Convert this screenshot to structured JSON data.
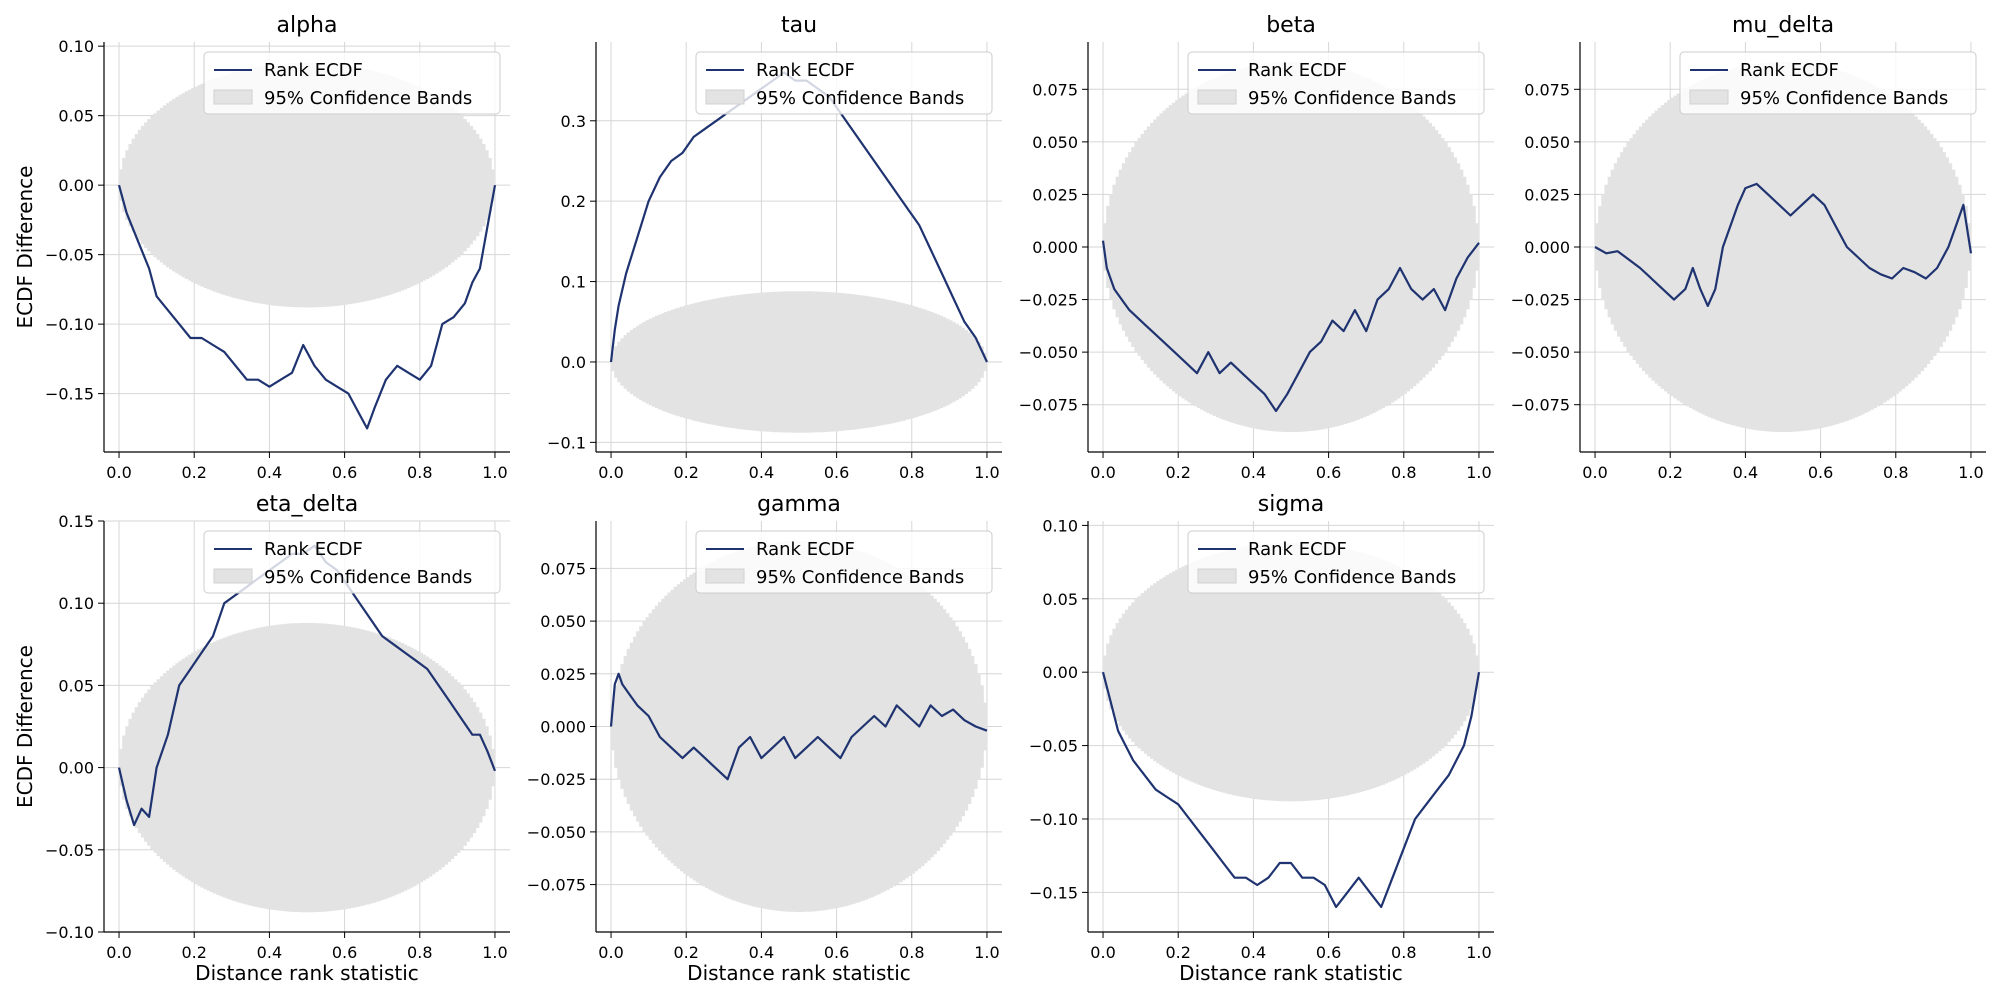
{
  "chart_data": [
    {
      "type": "line",
      "title": "alpha",
      "xlabel": "",
      "ylabel": "ECDF Difference",
      "xlim": [
        -0.04,
        1.04
      ],
      "ylim": [
        -0.192,
        0.103
      ],
      "xticks": [
        0.0,
        0.2,
        0.4,
        0.6,
        0.8,
        1.0
      ],
      "xtick_labels": [
        "0.0",
        "0.2",
        "0.4",
        "0.6",
        "0.8",
        "1.0"
      ],
      "yticks": [
        0.1,
        0.05,
        0.0,
        -0.05,
        -0.1,
        -0.15
      ],
      "ytick_labels": [
        "0.10",
        "0.05",
        "0.00",
        "−0.05",
        "−0.10",
        "−0.15"
      ],
      "grid": true,
      "legend": [
        "Rank ECDF",
        "95% Confidence Bands"
      ],
      "legend_position": "top-right",
      "band": {
        "center": 0.0,
        "half_width": 0.088
      },
      "series": [
        {
          "x": [
            0.0,
            0.02,
            0.05,
            0.08,
            0.1,
            0.13,
            0.16,
            0.19,
            0.22,
            0.25,
            0.28,
            0.31,
            0.34,
            0.37,
            0.4,
            0.43,
            0.46,
            0.49,
            0.52,
            0.55,
            0.58,
            0.61,
            0.64,
            0.66,
            0.68,
            0.71,
            0.74,
            0.77,
            0.8,
            0.83,
            0.86,
            0.89,
            0.92,
            0.94,
            0.96,
            0.98,
            1.0
          ],
          "y": [
            0.0,
            -0.02,
            -0.04,
            -0.06,
            -0.08,
            -0.09,
            -0.1,
            -0.11,
            -0.11,
            -0.115,
            -0.12,
            -0.13,
            -0.14,
            -0.14,
            -0.145,
            -0.14,
            -0.135,
            -0.115,
            -0.13,
            -0.14,
            -0.145,
            -0.15,
            -0.165,
            -0.175,
            -0.16,
            -0.14,
            -0.13,
            -0.135,
            -0.14,
            -0.13,
            -0.1,
            -0.095,
            -0.085,
            -0.07,
            -0.06,
            -0.03,
            0.0
          ]
        }
      ]
    },
    {
      "type": "line",
      "title": "tau",
      "xlabel": "",
      "ylabel": "",
      "xlim": [
        -0.04,
        1.04
      ],
      "ylim": [
        -0.112,
        0.398
      ],
      "xticks": [
        0.0,
        0.2,
        0.4,
        0.6,
        0.8,
        1.0
      ],
      "xtick_labels": [
        "0.0",
        "0.2",
        "0.4",
        "0.6",
        "0.8",
        "1.0"
      ],
      "yticks": [
        0.3,
        0.2,
        0.1,
        0.0,
        -0.1
      ],
      "ytick_labels": [
        "0.3",
        "0.2",
        "0.1",
        "0.0",
        "−0.1"
      ],
      "grid": true,
      "legend": [
        "Rank ECDF",
        "95% Confidence Bands"
      ],
      "legend_position": "top-right",
      "band": {
        "center": 0.0,
        "half_width": 0.088
      },
      "series": [
        {
          "x": [
            0.0,
            0.01,
            0.02,
            0.04,
            0.06,
            0.08,
            0.1,
            0.13,
            0.16,
            0.19,
            0.22,
            0.25,
            0.28,
            0.31,
            0.34,
            0.37,
            0.4,
            0.43,
            0.46,
            0.49,
            0.52,
            0.55,
            0.58,
            0.61,
            0.64,
            0.67,
            0.7,
            0.73,
            0.76,
            0.79,
            0.82,
            0.85,
            0.88,
            0.91,
            0.94,
            0.97,
            1.0
          ],
          "y": [
            0.0,
            0.04,
            0.07,
            0.11,
            0.14,
            0.17,
            0.2,
            0.23,
            0.25,
            0.26,
            0.28,
            0.29,
            0.3,
            0.31,
            0.32,
            0.33,
            0.34,
            0.35,
            0.36,
            0.35,
            0.35,
            0.34,
            0.33,
            0.31,
            0.29,
            0.27,
            0.25,
            0.23,
            0.21,
            0.19,
            0.17,
            0.14,
            0.11,
            0.08,
            0.05,
            0.03,
            0.0
          ]
        }
      ]
    },
    {
      "type": "line",
      "title": "beta",
      "xlabel": "",
      "ylabel": "",
      "xlim": [
        -0.04,
        1.04
      ],
      "ylim": [
        -0.0975,
        0.0975
      ],
      "xticks": [
        0.0,
        0.2,
        0.4,
        0.6,
        0.8,
        1.0
      ],
      "xtick_labels": [
        "0.0",
        "0.2",
        "0.4",
        "0.6",
        "0.8",
        "1.0"
      ],
      "yticks": [
        0.075,
        0.05,
        0.025,
        0.0,
        -0.025,
        -0.05,
        -0.075
      ],
      "ytick_labels": [
        "0.075",
        "0.050",
        "0.025",
        "0.000",
        "−0.025",
        "−0.050",
        "−0.075"
      ],
      "grid": true,
      "legend": [
        "Rank ECDF",
        "95% Confidence Bands"
      ],
      "legend_position": "top-right",
      "band": {
        "center": 0.0,
        "half_width": 0.088
      },
      "series": [
        {
          "x": [
            0.0,
            0.01,
            0.03,
            0.05,
            0.07,
            0.1,
            0.13,
            0.16,
            0.19,
            0.22,
            0.25,
            0.28,
            0.31,
            0.34,
            0.37,
            0.4,
            0.43,
            0.46,
            0.49,
            0.52,
            0.55,
            0.58,
            0.61,
            0.64,
            0.67,
            0.7,
            0.73,
            0.76,
            0.79,
            0.82,
            0.85,
            0.88,
            0.91,
            0.94,
            0.97,
            1.0
          ],
          "y": [
            0.003,
            -0.01,
            -0.02,
            -0.025,
            -0.03,
            -0.035,
            -0.04,
            -0.045,
            -0.05,
            -0.055,
            -0.06,
            -0.05,
            -0.06,
            -0.055,
            -0.06,
            -0.065,
            -0.07,
            -0.078,
            -0.07,
            -0.06,
            -0.05,
            -0.045,
            -0.035,
            -0.04,
            -0.03,
            -0.04,
            -0.025,
            -0.02,
            -0.01,
            -0.02,
            -0.025,
            -0.02,
            -0.03,
            -0.015,
            -0.005,
            0.002
          ]
        }
      ]
    },
    {
      "type": "line",
      "title": "mu_delta",
      "xlabel": "",
      "ylabel": "",
      "xlim": [
        -0.04,
        1.04
      ],
      "ylim": [
        -0.0975,
        0.0975
      ],
      "xticks": [
        0.0,
        0.2,
        0.4,
        0.6,
        0.8,
        1.0
      ],
      "xtick_labels": [
        "0.0",
        "0.2",
        "0.4",
        "0.6",
        "0.8",
        "1.0"
      ],
      "yticks": [
        0.075,
        0.05,
        0.025,
        0.0,
        -0.025,
        -0.05,
        -0.075
      ],
      "ytick_labels": [
        "0.075",
        "0.050",
        "0.025",
        "0.000",
        "−0.025",
        "−0.050",
        "−0.075"
      ],
      "grid": true,
      "legend": [
        "Rank ECDF",
        "95% Confidence Bands"
      ],
      "legend_position": "top-right",
      "band": {
        "center": 0.0,
        "half_width": 0.088
      },
      "series": [
        {
          "x": [
            0.0,
            0.03,
            0.06,
            0.09,
            0.12,
            0.15,
            0.18,
            0.21,
            0.24,
            0.26,
            0.28,
            0.3,
            0.32,
            0.34,
            0.36,
            0.38,
            0.4,
            0.43,
            0.46,
            0.49,
            0.52,
            0.55,
            0.58,
            0.61,
            0.64,
            0.67,
            0.7,
            0.73,
            0.76,
            0.79,
            0.82,
            0.85,
            0.88,
            0.91,
            0.94,
            0.96,
            0.98,
            1.0
          ],
          "y": [
            0.0,
            -0.003,
            -0.002,
            -0.006,
            -0.01,
            -0.015,
            -0.02,
            -0.025,
            -0.02,
            -0.01,
            -0.02,
            -0.028,
            -0.02,
            0.0,
            0.01,
            0.02,
            0.028,
            0.03,
            0.025,
            0.02,
            0.015,
            0.02,
            0.025,
            0.02,
            0.01,
            0.0,
            -0.005,
            -0.01,
            -0.013,
            -0.015,
            -0.01,
            -0.012,
            -0.015,
            -0.01,
            0.0,
            0.01,
            0.02,
            -0.003
          ]
        }
      ]
    },
    {
      "type": "line",
      "title": "eta_delta",
      "xlabel": "Distance rank statistic",
      "ylabel": "ECDF Difference",
      "xlim": [
        -0.04,
        1.04
      ],
      "ylim": [
        -0.1,
        0.15
      ],
      "xticks": [
        0.0,
        0.2,
        0.4,
        0.6,
        0.8,
        1.0
      ],
      "xtick_labels": [
        "0.0",
        "0.2",
        "0.4",
        "0.6",
        "0.8",
        "1.0"
      ],
      "yticks": [
        0.15,
        0.1,
        0.05,
        0.0,
        -0.05,
        -0.1
      ],
      "ytick_labels": [
        "0.15",
        "0.10",
        "0.05",
        "0.00",
        "−0.05",
        "−0.10"
      ],
      "grid": true,
      "legend": [
        "Rank ECDF",
        "95% Confidence Bands"
      ],
      "legend_position": "top-right",
      "band": {
        "center": 0.0,
        "half_width": 0.088
      },
      "series": [
        {
          "x": [
            0.0,
            0.02,
            0.04,
            0.06,
            0.08,
            0.1,
            0.13,
            0.16,
            0.19,
            0.22,
            0.25,
            0.28,
            0.31,
            0.34,
            0.37,
            0.4,
            0.43,
            0.46,
            0.49,
            0.52,
            0.55,
            0.58,
            0.61,
            0.64,
            0.67,
            0.7,
            0.73,
            0.76,
            0.79,
            0.82,
            0.85,
            0.88,
            0.91,
            0.94,
            0.96,
            0.98,
            1.0
          ],
          "y": [
            0.0,
            -0.02,
            -0.035,
            -0.025,
            -0.03,
            0.0,
            0.02,
            0.05,
            0.06,
            0.07,
            0.08,
            0.1,
            0.105,
            0.11,
            0.115,
            0.12,
            0.125,
            0.13,
            0.13,
            0.135,
            0.125,
            0.12,
            0.11,
            0.1,
            0.09,
            0.08,
            0.075,
            0.07,
            0.065,
            0.06,
            0.05,
            0.04,
            0.03,
            0.02,
            0.02,
            0.01,
            -0.002
          ]
        }
      ]
    },
    {
      "type": "line",
      "title": "gamma",
      "xlabel": "Distance rank statistic",
      "ylabel": "",
      "xlim": [
        -0.04,
        1.04
      ],
      "ylim": [
        -0.0975,
        0.0975
      ],
      "xticks": [
        0.0,
        0.2,
        0.4,
        0.6,
        0.8,
        1.0
      ],
      "xtick_labels": [
        "0.0",
        "0.2",
        "0.4",
        "0.6",
        "0.8",
        "1.0"
      ],
      "yticks": [
        0.075,
        0.05,
        0.025,
        0.0,
        -0.025,
        -0.05,
        -0.075
      ],
      "ytick_labels": [
        "0.075",
        "0.050",
        "0.025",
        "0.000",
        "−0.025",
        "−0.050",
        "−0.075"
      ],
      "grid": true,
      "legend": [
        "Rank ECDF",
        "95% Confidence Bands"
      ],
      "legend_position": "top-right",
      "band": {
        "center": 0.0,
        "half_width": 0.088
      },
      "series": [
        {
          "x": [
            0.0,
            0.01,
            0.02,
            0.03,
            0.05,
            0.07,
            0.1,
            0.13,
            0.16,
            0.19,
            0.22,
            0.25,
            0.28,
            0.31,
            0.34,
            0.37,
            0.4,
            0.43,
            0.46,
            0.49,
            0.52,
            0.55,
            0.58,
            0.61,
            0.64,
            0.67,
            0.7,
            0.73,
            0.76,
            0.79,
            0.82,
            0.85,
            0.88,
            0.91,
            0.94,
            0.97,
            1.0
          ],
          "y": [
            0.0,
            0.02,
            0.025,
            0.02,
            0.015,
            0.01,
            0.005,
            -0.005,
            -0.01,
            -0.015,
            -0.01,
            -0.015,
            -0.02,
            -0.025,
            -0.01,
            -0.005,
            -0.015,
            -0.01,
            -0.005,
            -0.015,
            -0.01,
            -0.005,
            -0.01,
            -0.015,
            -0.005,
            0.0,
            0.005,
            0.0,
            0.01,
            0.005,
            0.0,
            0.01,
            0.005,
            0.008,
            0.003,
            0.0,
            -0.002
          ]
        }
      ]
    },
    {
      "type": "line",
      "title": "sigma",
      "xlabel": "Distance rank statistic",
      "ylabel": "",
      "xlim": [
        -0.04,
        1.04
      ],
      "ylim": [
        -0.177,
        0.103
      ],
      "xticks": [
        0.0,
        0.2,
        0.4,
        0.6,
        0.8,
        1.0
      ],
      "xtick_labels": [
        "0.0",
        "0.2",
        "0.4",
        "0.6",
        "0.8",
        "1.0"
      ],
      "yticks": [
        0.1,
        0.05,
        0.0,
        -0.05,
        -0.1,
        -0.15
      ],
      "ytick_labels": [
        "0.10",
        "0.05",
        "0.00",
        "−0.05",
        "−0.10",
        "−0.15"
      ],
      "grid": true,
      "legend": [
        "Rank ECDF",
        "95% Confidence Bands"
      ],
      "legend_position": "top-right",
      "band": {
        "center": 0.0,
        "half_width": 0.088
      },
      "series": [
        {
          "x": [
            0.0,
            0.02,
            0.04,
            0.06,
            0.08,
            0.11,
            0.14,
            0.17,
            0.2,
            0.23,
            0.26,
            0.29,
            0.32,
            0.35,
            0.38,
            0.41,
            0.44,
            0.47,
            0.5,
            0.53,
            0.56,
            0.59,
            0.62,
            0.65,
            0.68,
            0.71,
            0.74,
            0.77,
            0.8,
            0.83,
            0.86,
            0.89,
            0.92,
            0.94,
            0.96,
            0.98,
            1.0
          ],
          "y": [
            0.0,
            -0.02,
            -0.04,
            -0.05,
            -0.06,
            -0.07,
            -0.08,
            -0.085,
            -0.09,
            -0.1,
            -0.11,
            -0.12,
            -0.13,
            -0.14,
            -0.14,
            -0.145,
            -0.14,
            -0.13,
            -0.13,
            -0.14,
            -0.14,
            -0.145,
            -0.16,
            -0.15,
            -0.14,
            -0.15,
            -0.16,
            -0.14,
            -0.12,
            -0.1,
            -0.09,
            -0.08,
            -0.07,
            -0.06,
            -0.05,
            -0.03,
            0.0
          ]
        }
      ]
    }
  ]
}
